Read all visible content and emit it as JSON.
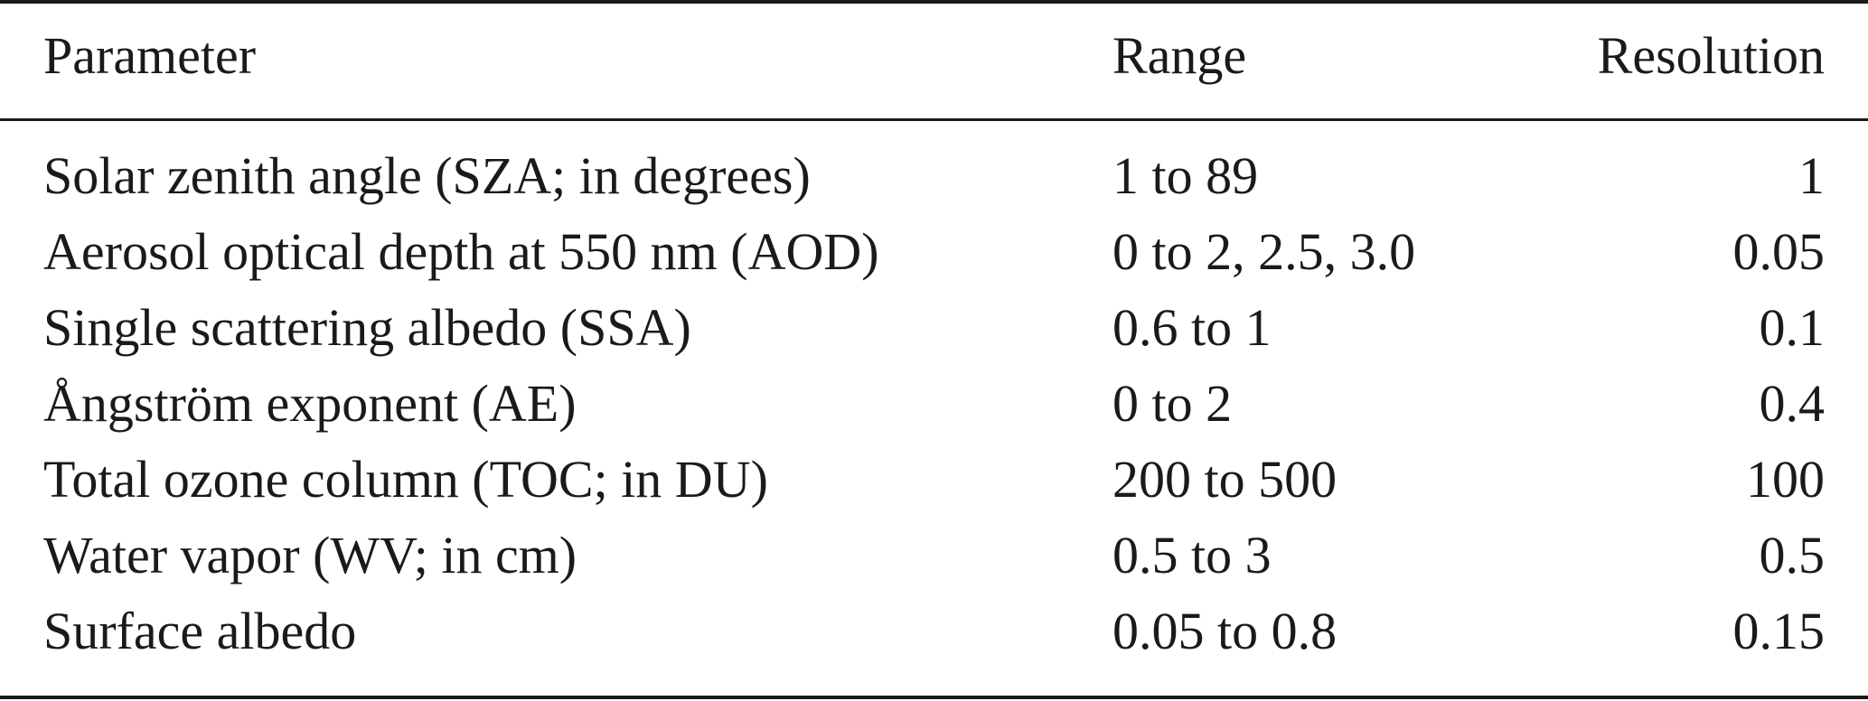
{
  "table": {
    "headers": {
      "parameter": "Parameter",
      "range": "Range",
      "resolution": "Resolution"
    },
    "rows": [
      {
        "parameter": "Solar zenith angle (SZA; in degrees)",
        "range": "1 to 89",
        "resolution": "1"
      },
      {
        "parameter": "Aerosol optical depth at 550 nm (AOD)",
        "range": "0 to 2, 2.5, 3.0",
        "resolution": "0.05"
      },
      {
        "parameter": "Single scattering albedo (SSA)",
        "range": "0.6 to 1",
        "resolution": "0.1"
      },
      {
        "parameter": "Ångström exponent (AE)",
        "range": "0 to 2",
        "resolution": "0.4"
      },
      {
        "parameter": "Total ozone column (TOC; in DU)",
        "range": "200 to 500",
        "resolution": "100"
      },
      {
        "parameter": "Water vapor (WV; in cm)",
        "range": "0.5 to 3",
        "resolution": "0.5"
      },
      {
        "parameter": "Surface albedo",
        "range": "0.05 to 0.8",
        "resolution": "0.15"
      }
    ]
  }
}
